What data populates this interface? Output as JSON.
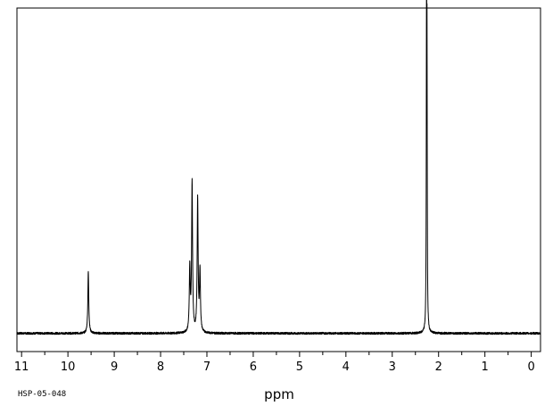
{
  "chart_data": {
    "type": "line",
    "xlabel": "ppm",
    "ylabel": "",
    "xlim": [
      11.1,
      -0.2
    ],
    "ylim": [
      -0.06,
      1.07
    ],
    "x_reversed": true,
    "grid": false,
    "ticks": [
      "11",
      "10",
      "9",
      "8",
      "7",
      "6",
      "5",
      "4",
      "3",
      "2",
      "1",
      "0"
    ],
    "tick_values": [
      11,
      10,
      9,
      8,
      7,
      6,
      5,
      4,
      3,
      2,
      1,
      0
    ],
    "minor_tick_step": 0.5,
    "spectrum_code": "HSP-05-048",
    "series": [
      {
        "peaks": [
          {
            "shift": 9.56,
            "height": 0.203,
            "width": 0.012
          },
          {
            "shift": 7.37,
            "height": 0.21,
            "width": 0.012
          },
          {
            "shift": 7.32,
            "height": 0.49,
            "width": 0.012
          },
          {
            "shift": 7.2,
            "height": 0.44,
            "width": 0.012
          },
          {
            "shift": 7.15,
            "height": 0.2,
            "width": 0.012
          },
          {
            "shift": 2.26,
            "height": 0.985,
            "width": 0.006
          },
          {
            "shift": 2.25,
            "height": 0.82,
            "width": 0.006
          }
        ]
      }
    ]
  }
}
